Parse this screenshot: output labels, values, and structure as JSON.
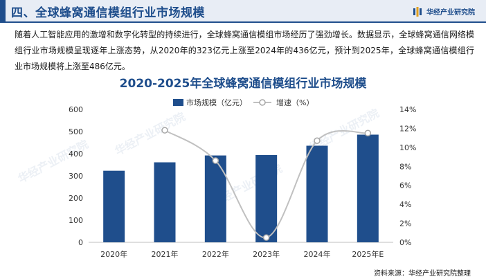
{
  "header": {
    "title": "四、全球蜂窝通信模组行业市场规模",
    "brand": "华经产业研究院"
  },
  "paragraph": "随着人工智能应用的激增和数字化转型的持续进行，全球蜂窝通信模组市场经历了强劲增长。数据显示，全球蜂窝通信网络模组行业市场规模呈现逐年上涨态势，从2020年的323亿元上涨至2024年的436亿元，预计到2025年，全球蜂窝通信模组行业市场规模将上涨至486亿元。",
  "watermark": "华经产业研究院",
  "source": "资料来源：华经产业研究院整理",
  "colors": {
    "brand": "#1f4e8c",
    "bar": "#1f4e8c",
    "line": "#c0c0c0",
    "header_bg": "#e8edf5"
  },
  "chart_data": {
    "type": "bar",
    "title": "2020-2025年全球蜂窝通信模组行业市场规模",
    "categories": [
      "2020年",
      "2021年",
      "2022年",
      "2023年",
      "2024年",
      "2025年E"
    ],
    "series": [
      {
        "name": "市场规模（亿元）",
        "type": "bar",
        "axis": "left",
        "values": [
          323,
          361,
          392,
          394,
          436,
          486
        ]
      },
      {
        "name": "增速（%）",
        "type": "line",
        "axis": "right",
        "values": [
          null,
          11.8,
          8.6,
          0.5,
          10.7,
          11.5
        ]
      }
    ],
    "y_left": {
      "min": 0,
      "max": 600,
      "ticks": [
        "0",
        "100",
        "200",
        "300",
        "400",
        "500",
        "600"
      ]
    },
    "y_right": {
      "min": 0,
      "max": 14,
      "ticks": [
        "0%",
        "2%",
        "4%",
        "6%",
        "8%",
        "10%",
        "12%",
        "14%"
      ]
    },
    "grid": false,
    "legend_position": "top"
  }
}
